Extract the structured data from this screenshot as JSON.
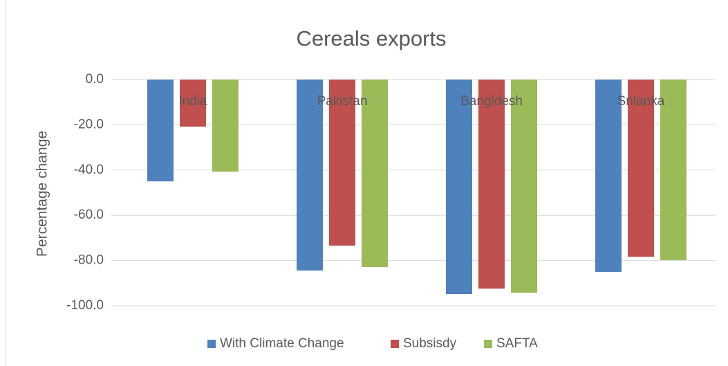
{
  "chart_data": {
    "type": "bar",
    "title": "Cereals exports",
    "y_label": "Percentage change",
    "categories": [
      "India",
      "Pakistan",
      "Bangldesh",
      "Srilanka"
    ],
    "series": [
      {
        "name": "With Climate Change",
        "color": "#4f81bd",
        "values": [
          -45.0,
          -84.4,
          -94.8,
          -85.0
        ]
      },
      {
        "name": "Subsisdy",
        "color": "#c0504d",
        "values": [
          -20.8,
          -73.4,
          -92.4,
          -78.3
        ]
      },
      {
        "name": "SAFTA",
        "color": "#9bbb59",
        "values": [
          -40.7,
          -82.9,
          -94.2,
          -79.8
        ]
      }
    ],
    "ylim": [
      -100,
      0
    ],
    "yticks": [
      {
        "value": 0,
        "label": "0.0"
      },
      {
        "value": -20,
        "label": "-20.0"
      },
      {
        "value": -40,
        "label": "-40.0"
      },
      {
        "value": -60,
        "label": "-60.0"
      },
      {
        "value": -80,
        "label": "-80.0"
      },
      {
        "value": -100,
        "label": "-100.0"
      }
    ],
    "grid": true,
    "legend": "bottom"
  }
}
